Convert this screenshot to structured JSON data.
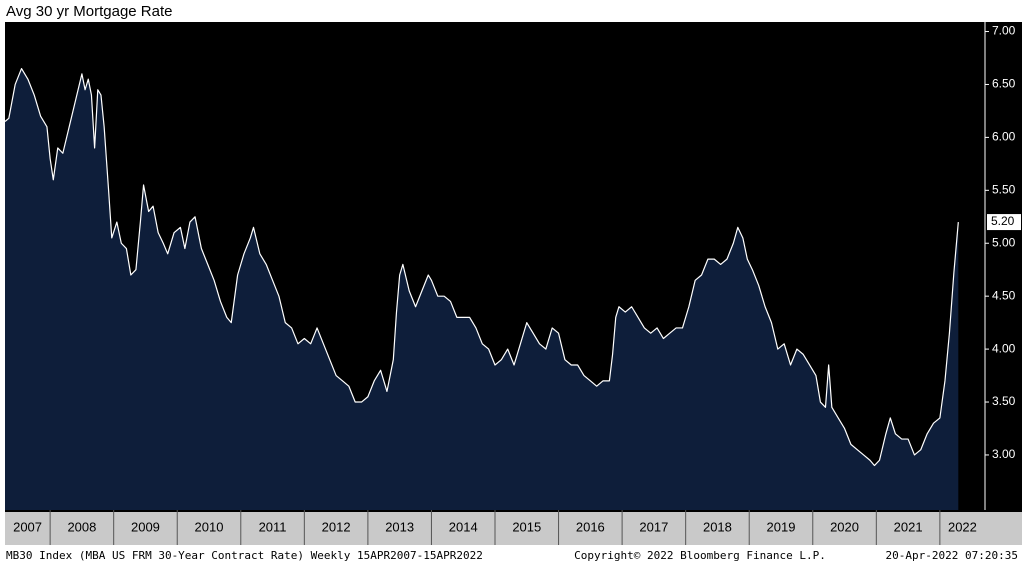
{
  "chart_data": {
    "type": "area",
    "title": "Avg 30 yr Mortgage Rate",
    "footer_left": "MB30 Index (MBA US FRM 30-Year Contract Rate) Weekly 15APR2007-15APR2022",
    "footer_center": "Copyright© 2022 Bloomberg Finance L.P.",
    "footer_right": "20-Apr-2022 07:20:35",
    "last_value_label": "5.20",
    "year_labels": [
      "2007",
      "2008",
      "2009",
      "2010",
      "2011",
      "2012",
      "2013",
      "2014",
      "2015",
      "2016",
      "2017",
      "2018",
      "2019",
      "2020",
      "2021",
      "2022"
    ],
    "xlim": [
      2007.29,
      2022.71
    ],
    "xticks": [
      2008,
      2009,
      2010,
      2011,
      2012,
      2013,
      2014,
      2015,
      2016,
      2017,
      2018,
      2019,
      2020,
      2021,
      2022
    ],
    "ylim": [
      2.48,
      7.09
    ],
    "yticks": [
      {
        "value": 3,
        "label": "3.00"
      },
      {
        "value": 3.5,
        "label": "3.50"
      },
      {
        "value": 4,
        "label": "4.00"
      },
      {
        "value": 4.5,
        "label": "4.50"
      },
      {
        "value": 5,
        "label": "5.00"
      },
      {
        "value": 5.5,
        "label": "5.50"
      },
      {
        "value": 6,
        "label": "6.00"
      },
      {
        "value": 6.5,
        "label": "6.50"
      },
      {
        "value": 7,
        "label": "7.00"
      }
    ],
    "line_color": "#ffffff",
    "fill_color": "#0e1e3a",
    "background": "#000000",
    "x": [
      2007.29,
      2007.35,
      2007.45,
      2007.55,
      2007.65,
      2007.75,
      2007.85,
      2007.95,
      2008.0,
      2008.05,
      2008.12,
      2008.2,
      2008.3,
      2008.4,
      2008.5,
      2008.55,
      2008.6,
      2008.65,
      2008.7,
      2008.75,
      2008.8,
      2008.85,
      2008.92,
      2008.97,
      2009.05,
      2009.12,
      2009.2,
      2009.27,
      2009.35,
      2009.42,
      2009.47,
      2009.55,
      2009.62,
      2009.7,
      2009.78,
      2009.85,
      2009.95,
      2010.05,
      2010.12,
      2010.2,
      2010.28,
      2010.38,
      2010.48,
      2010.58,
      2010.68,
      2010.78,
      2010.85,
      2010.95,
      2011.05,
      2011.15,
      2011.2,
      2011.3,
      2011.4,
      2011.5,
      2011.6,
      2011.7,
      2011.8,
      2011.9,
      2012.0,
      2012.1,
      2012.2,
      2012.3,
      2012.4,
      2012.5,
      2012.6,
      2012.7,
      2012.8,
      2012.9,
      2013.0,
      2013.1,
      2013.2,
      2013.3,
      2013.4,
      2013.45,
      2013.5,
      2013.55,
      2013.65,
      2013.75,
      2013.85,
      2013.95,
      2014.0,
      2014.1,
      2014.2,
      2014.3,
      2014.4,
      2014.5,
      2014.6,
      2014.7,
      2014.8,
      2014.9,
      2015.0,
      2015.1,
      2015.2,
      2015.3,
      2015.4,
      2015.5,
      2015.6,
      2015.7,
      2015.8,
      2015.9,
      2016.0,
      2016.1,
      2016.2,
      2016.3,
      2016.4,
      2016.5,
      2016.6,
      2016.7,
      2016.8,
      2016.85,
      2016.9,
      2016.95,
      2017.05,
      2017.15,
      2017.25,
      2017.35,
      2017.45,
      2017.55,
      2017.65,
      2017.75,
      2017.85,
      2017.95,
      2018.05,
      2018.15,
      2018.25,
      2018.35,
      2018.45,
      2018.55,
      2018.65,
      2018.75,
      2018.82,
      2018.9,
      2018.97,
      2019.05,
      2019.15,
      2019.25,
      2019.35,
      2019.45,
      2019.55,
      2019.65,
      2019.75,
      2019.85,
      2019.95,
      2020.05,
      2020.12,
      2020.2,
      2020.25,
      2020.3,
      2020.4,
      2020.5,
      2020.6,
      2020.7,
      2020.8,
      2020.9,
      2020.97,
      2021.05,
      2021.15,
      2021.22,
      2021.3,
      2021.4,
      2021.5,
      2021.6,
      2021.7,
      2021.8,
      2021.9,
      2022.0,
      2022.08,
      2022.15,
      2022.22,
      2022.29
    ],
    "values": [
      6.15,
      6.18,
      6.5,
      6.65,
      6.55,
      6.4,
      6.2,
      6.1,
      5.8,
      5.6,
      5.9,
      5.85,
      6.1,
      6.35,
      6.6,
      6.45,
      6.55,
      6.4,
      5.9,
      6.45,
      6.4,
      6.1,
      5.5,
      5.05,
      5.2,
      5.0,
      4.95,
      4.7,
      4.75,
      5.2,
      5.55,
      5.3,
      5.35,
      5.1,
      5.0,
      4.9,
      5.1,
      5.15,
      4.95,
      5.2,
      5.25,
      4.95,
      4.8,
      4.65,
      4.45,
      4.3,
      4.25,
      4.7,
      4.9,
      5.05,
      5.15,
      4.9,
      4.8,
      4.65,
      4.5,
      4.25,
      4.2,
      4.05,
      4.1,
      4.05,
      4.2,
      4.05,
      3.9,
      3.75,
      3.7,
      3.65,
      3.5,
      3.5,
      3.55,
      3.7,
      3.8,
      3.6,
      3.9,
      4.35,
      4.7,
      4.8,
      4.55,
      4.4,
      4.55,
      4.7,
      4.65,
      4.5,
      4.5,
      4.45,
      4.3,
      4.3,
      4.3,
      4.2,
      4.05,
      4.0,
      3.85,
      3.9,
      4.0,
      3.85,
      4.05,
      4.25,
      4.15,
      4.05,
      4.0,
      4.2,
      4.15,
      3.9,
      3.85,
      3.85,
      3.75,
      3.7,
      3.65,
      3.7,
      3.7,
      3.95,
      4.3,
      4.4,
      4.35,
      4.4,
      4.3,
      4.2,
      4.15,
      4.2,
      4.1,
      4.15,
      4.2,
      4.2,
      4.4,
      4.65,
      4.7,
      4.85,
      4.85,
      4.8,
      4.85,
      5.0,
      5.15,
      5.05,
      4.85,
      4.75,
      4.6,
      4.4,
      4.25,
      4.0,
      4.05,
      3.85,
      4.0,
      3.95,
      3.85,
      3.75,
      3.5,
      3.45,
      3.85,
      3.45,
      3.35,
      3.25,
      3.1,
      3.05,
      3.0,
      2.95,
      2.9,
      2.95,
      3.2,
      3.35,
      3.2,
      3.15,
      3.15,
      3.0,
      3.05,
      3.2,
      3.3,
      3.35,
      3.7,
      4.15,
      4.72,
      5.2
    ]
  }
}
